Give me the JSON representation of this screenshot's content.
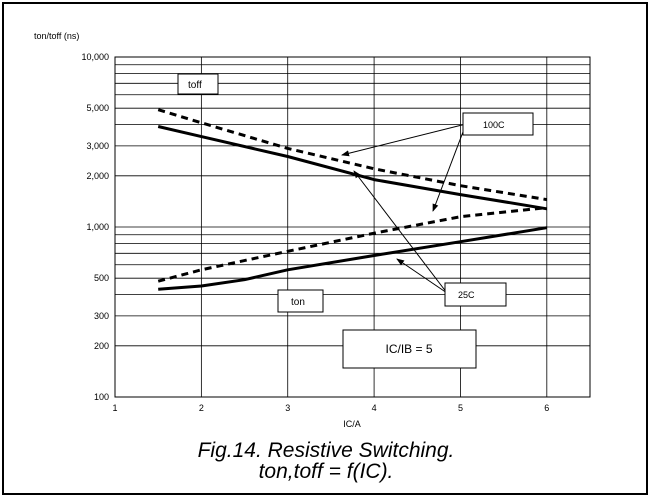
{
  "chart_data": {
    "type": "line",
    "ylabel": "ton/toff (ns)",
    "xlabel": "IC/A",
    "xlim": [
      1,
      6.5
    ],
    "ylim": [
      100,
      10000
    ],
    "yscale": "log",
    "grid": true,
    "x_ticks": [
      1,
      2,
      3,
      4,
      5,
      6
    ],
    "x_tick_labels": [
      "1",
      "2",
      "3",
      "4",
      "5",
      "6"
    ],
    "y_ticks": [
      100,
      200,
      300,
      500,
      1000,
      2000,
      3000,
      5000,
      10000
    ],
    "y_tick_labels": [
      "100",
      "200",
      "300",
      "500",
      "1,000",
      "2,000",
      "3,000",
      "5,000",
      "10,000"
    ],
    "series": [
      {
        "style": "dashed",
        "points": [
          [
            1.5,
            4900
          ],
          [
            2,
            4100
          ],
          [
            3,
            2900
          ],
          [
            4,
            2200
          ],
          [
            5,
            1750
          ],
          [
            6,
            1450
          ]
        ]
      },
      {
        "style": "solid",
        "points": [
          [
            1.5,
            3900
          ],
          [
            2,
            3400
          ],
          [
            3,
            2600
          ],
          [
            4,
            1900
          ],
          [
            5,
            1550
          ],
          [
            6,
            1280
          ]
        ]
      },
      {
        "style": "dashed",
        "points": [
          [
            1.5,
            480
          ],
          [
            2,
            560
          ],
          [
            3,
            720
          ],
          [
            4,
            920
          ],
          [
            5,
            1150
          ],
          [
            6,
            1300
          ]
        ]
      },
      {
        "style": "solid",
        "points": [
          [
            1.5,
            430
          ],
          [
            2,
            450
          ],
          [
            2.5,
            490
          ],
          [
            3,
            560
          ],
          [
            4,
            680
          ],
          [
            5,
            820
          ],
          [
            6,
            990
          ]
        ]
      }
    ],
    "annotations": {
      "toff": "toff",
      "ton": "ton",
      "t100": "100C",
      "t25": "25C",
      "ratio": "IC/IB = 5"
    }
  },
  "caption": {
    "line1": "Fig.14.   Resistive Switching.",
    "line2": "ton,toff = f(IC)."
  },
  "colors": {
    "line": "#000000",
    "background": "#ffffff"
  }
}
